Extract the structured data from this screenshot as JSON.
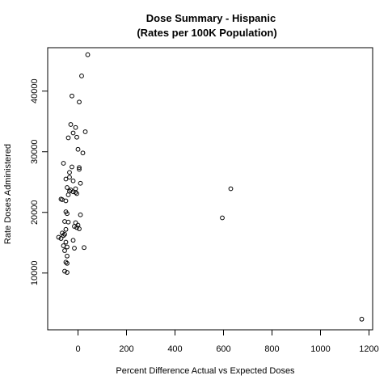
{
  "chart_data": {
    "type": "scatter",
    "title": "Dose Summary - Hispanic",
    "subtitle": "(Rates per 100K Population)",
    "xlabel": "Percent Difference Actual vs Expected Doses",
    "ylabel": "Rate Doses Administered",
    "xlim": [
      -125,
      1215
    ],
    "ylim": [
      640,
      47160
    ],
    "x_ticks": [
      0,
      200,
      400,
      600,
      800,
      1000,
      1200
    ],
    "y_ticks": [
      10000,
      20000,
      30000,
      40000
    ],
    "grid": false,
    "marker": "open-circle",
    "points": [
      {
        "x": 40,
        "y": 46000
      },
      {
        "x": 15,
        "y": 42500
      },
      {
        "x": -25,
        "y": 39200
      },
      {
        "x": 5,
        "y": 38200
      },
      {
        "x": -30,
        "y": 34500
      },
      {
        "x": -10,
        "y": 34000
      },
      {
        "x": 30,
        "y": 33300
      },
      {
        "x": -20,
        "y": 33100
      },
      {
        "x": -40,
        "y": 32300
      },
      {
        "x": -5,
        "y": 32400
      },
      {
        "x": 0,
        "y": 30400
      },
      {
        "x": 20,
        "y": 29800
      },
      {
        "x": -60,
        "y": 28100
      },
      {
        "x": -25,
        "y": 27500
      },
      {
        "x": 5,
        "y": 27400
      },
      {
        "x": 5,
        "y": 27100
      },
      {
        "x": -35,
        "y": 26600
      },
      {
        "x": -50,
        "y": 25500
      },
      {
        "x": -35,
        "y": 25800
      },
      {
        "x": -20,
        "y": 25200
      },
      {
        "x": 10,
        "y": 24800
      },
      {
        "x": -45,
        "y": 24100
      },
      {
        "x": -10,
        "y": 23900
      },
      {
        "x": -35,
        "y": 23500
      },
      {
        "x": -30,
        "y": 23700
      },
      {
        "x": -20,
        "y": 23400
      },
      {
        "x": -10,
        "y": 23300
      },
      {
        "x": -5,
        "y": 23100
      },
      {
        "x": -40,
        "y": 22900
      },
      {
        "x": -70,
        "y": 22200
      },
      {
        "x": -65,
        "y": 22100
      },
      {
        "x": -50,
        "y": 21900
      },
      {
        "x": 10,
        "y": 19600
      },
      {
        "x": -50,
        "y": 20100
      },
      {
        "x": -45,
        "y": 19800
      },
      {
        "x": -55,
        "y": 18500
      },
      {
        "x": -40,
        "y": 18400
      },
      {
        "x": -10,
        "y": 18300
      },
      {
        "x": 0,
        "y": 17900
      },
      {
        "x": -15,
        "y": 17700
      },
      {
        "x": -5,
        "y": 17500
      },
      {
        "x": -50,
        "y": 17200
      },
      {
        "x": 5,
        "y": 17300
      },
      {
        "x": -65,
        "y": 16600
      },
      {
        "x": -55,
        "y": 16400
      },
      {
        "x": -60,
        "y": 16200
      },
      {
        "x": -80,
        "y": 15900
      },
      {
        "x": -70,
        "y": 15700
      },
      {
        "x": -20,
        "y": 15400
      },
      {
        "x": -50,
        "y": 15100
      },
      {
        "x": -60,
        "y": 14500
      },
      {
        "x": -45,
        "y": 14300
      },
      {
        "x": -15,
        "y": 14100
      },
      {
        "x": 25,
        "y": 14200
      },
      {
        "x": -55,
        "y": 13700
      },
      {
        "x": -45,
        "y": 12800
      },
      {
        "x": -50,
        "y": 11800
      },
      {
        "x": -45,
        "y": 11600
      },
      {
        "x": -55,
        "y": 10300
      },
      {
        "x": -45,
        "y": 10100
      },
      {
        "x": 595,
        "y": 19100
      },
      {
        "x": 630,
        "y": 23900
      },
      {
        "x": 1170,
        "y": 2400
      }
    ]
  }
}
